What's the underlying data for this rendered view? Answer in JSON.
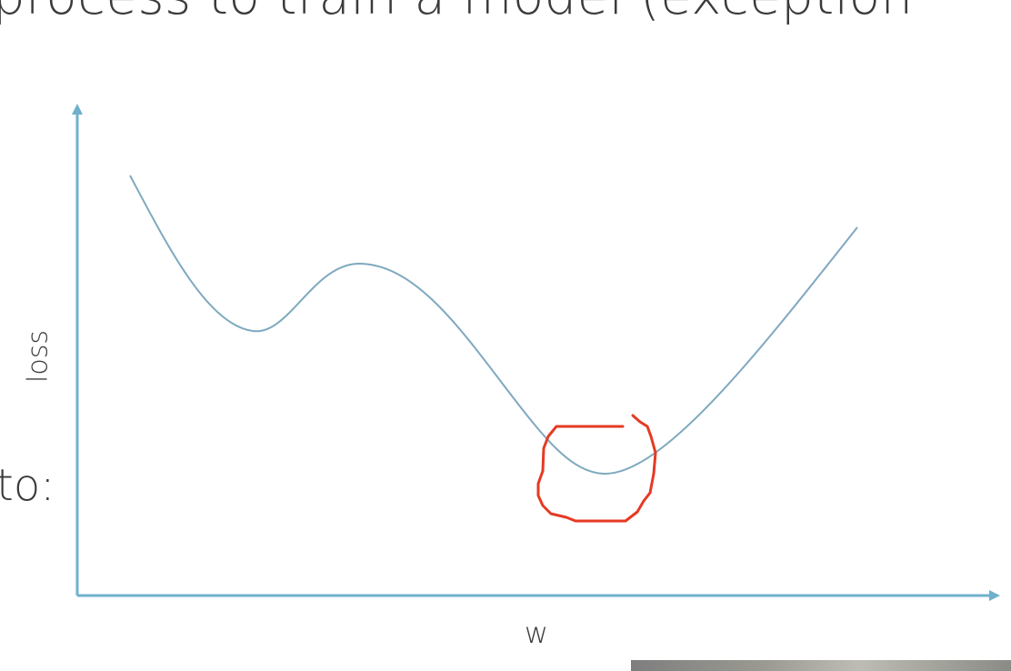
{
  "slide": {
    "title_fragment": "process to train a model (exception",
    "left_fragment": "to:"
  },
  "diagram": {
    "y_label": "loss",
    "x_label": "w",
    "axis_color": "#6fb1cc",
    "curve_color": "#7fa9bf",
    "highlight_color": "#e53a24"
  }
}
